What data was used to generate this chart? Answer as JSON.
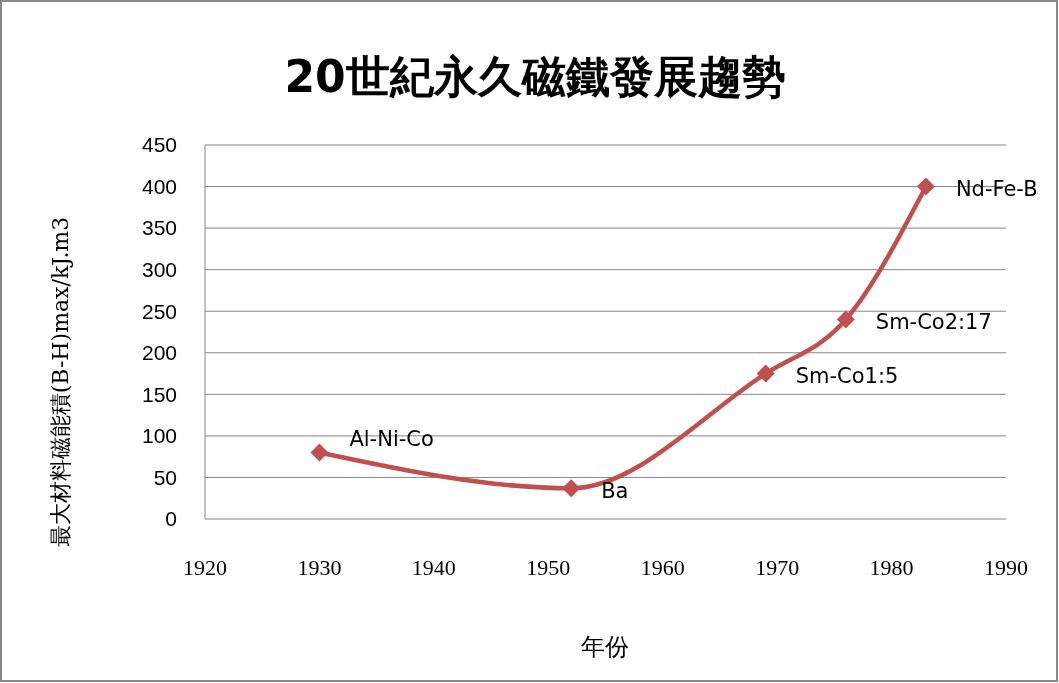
{
  "chart_data": {
    "type": "line",
    "title": "20世紀永久磁鐵發展趨勢",
    "xlabel": "年份",
    "ylabel": "最大材料磁能積(B-H)max/kJ.m3",
    "x": [
      1930,
      1952,
      1969,
      1976,
      1983
    ],
    "series": [
      {
        "color": "#c0504d",
        "values": [
          80,
          37,
          175,
          240,
          400
        ]
      }
    ],
    "xlim": [
      1920,
      1990
    ],
    "xticks": [
      1920,
      1930,
      1940,
      1950,
      1960,
      1970,
      1980,
      1990
    ],
    "ylim": [
      0,
      450
    ],
    "yticks": [
      0,
      50,
      100,
      150,
      200,
      250,
      300,
      350,
      400,
      450
    ],
    "grid": "y",
    "marker": "diamond",
    "line_style": "solid",
    "annotations": [
      {
        "text": "Al-Ni-Co",
        "x": 1930,
        "y": 80
      },
      {
        "text": "Ba",
        "x": 1952,
        "y": 37
      },
      {
        "text": "Sm-Co1:5",
        "x": 1969,
        "y": 175
      },
      {
        "text": "Sm-Co2:17",
        "x": 1976,
        "y": 240
      },
      {
        "text": "Nd-Fe-B",
        "x": 1983,
        "y": 400
      }
    ]
  }
}
